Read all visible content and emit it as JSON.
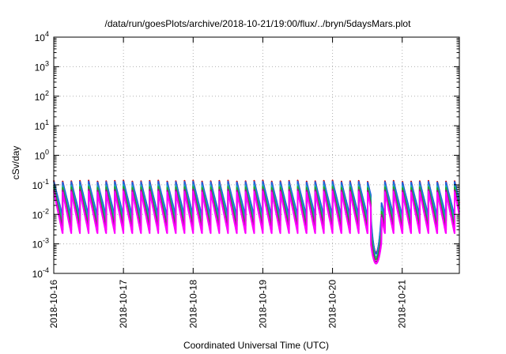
{
  "chart_data": {
    "type": "line",
    "title": "/data/run/goesPlots/archive/2018-10-21/19:00/flux/../bryn/5daysMars.plot",
    "xlabel": "Coordinated Universal Time (UTC)",
    "ylabel": "cSv/day",
    "yscale": "log",
    "ylim": [
      0.0001,
      10000
    ],
    "xlim": [
      0,
      5.82
    ],
    "x_ticks": [
      "2018-10-16",
      "2018-10-17",
      "2018-10-18",
      "2018-10-19",
      "2018-10-20",
      "2018-10-21"
    ],
    "y_ticks": [
      {
        "base": "10",
        "exp": "4"
      },
      {
        "base": "10",
        "exp": "3"
      },
      {
        "base": "10",
        "exp": "2"
      },
      {
        "base": "10",
        "exp": "1"
      },
      {
        "base": "10",
        "exp": "0"
      },
      {
        "base": "10",
        "exp": "-1"
      },
      {
        "base": "10",
        "exp": "-2"
      },
      {
        "base": "10",
        "exp": "-3"
      },
      {
        "base": "10",
        "exp": "-4"
      }
    ],
    "grid": true,
    "pattern": {
      "cycle_days": 0.125,
      "gap_start": 4.55,
      "gap_end": 4.7,
      "gap_min": 0.0005
    },
    "series": [
      {
        "color": "#cc0000",
        "peak": 0.14,
        "trough": 0.006
      },
      {
        "color": "#2060e0",
        "peak": 0.13,
        "trough": 0.009
      },
      {
        "color": "#1aa8b8",
        "peak": 0.1,
        "trough": 0.006
      },
      {
        "color": "#22aa22",
        "peak": 0.085,
        "trough": 0.004
      },
      {
        "color": "#aa0099",
        "peak": 0.07,
        "trough": 0.003
      },
      {
        "color": "#ff00ff",
        "peak": 0.06,
        "trough": 0.0023
      }
    ]
  }
}
